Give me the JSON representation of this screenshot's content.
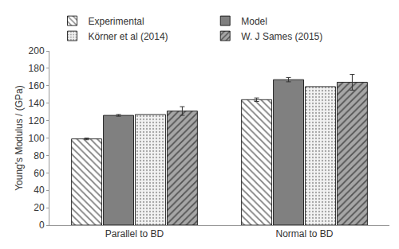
{
  "chart_data": {
    "type": "bar",
    "y_label": "Young's Modulus / (GPa)",
    "categories": [
      "Parallel to BD",
      "Normal to BD"
    ],
    "series": [
      {
        "name": "Experimental",
        "color": "#ffffff",
        "marker": "backslash",
        "values": [
          99,
          144
        ],
        "errors": [
          1,
          2
        ]
      },
      {
        "name": "Model",
        "color": "#808080",
        "marker": "solid",
        "values": [
          126,
          167
        ],
        "errors": [
          1,
          2.5
        ]
      },
      {
        "name": "Körner et al (2014)",
        "color": "#f2f2f2",
        "marker": "dots",
        "values": [
          127,
          159
        ]
      },
      {
        "name": "W. J Sames (2015)",
        "color": "#a6a6a6",
        "marker": "slash",
        "values": [
          131,
          164
        ],
        "errors": [
          5,
          9
        ]
      }
    ],
    "ylim": [
      0,
      200
    ],
    "yticks": [
      0,
      20,
      40,
      60,
      80,
      100,
      120,
      140,
      160,
      180,
      200
    ],
    "grid": false,
    "legend": "top"
  }
}
